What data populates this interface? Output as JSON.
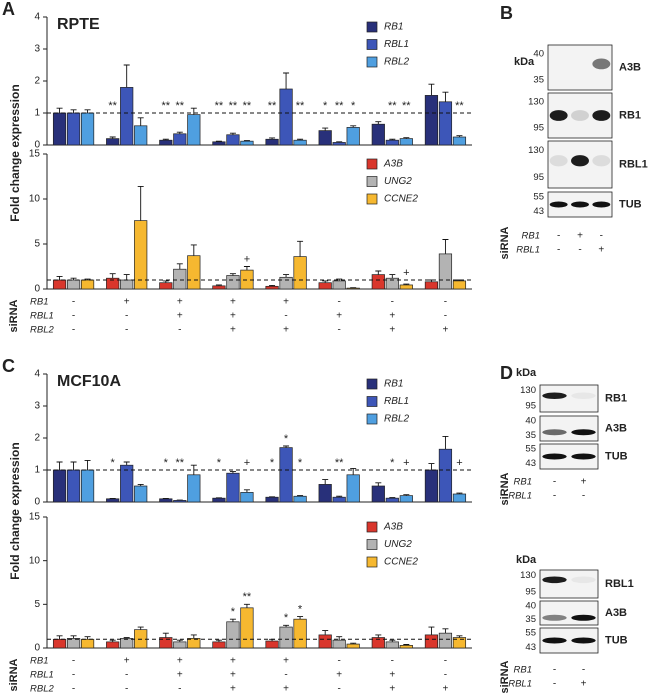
{
  "figure": {
    "panels": [
      {
        "letter": "A",
        "ylabel": "Fold change expression",
        "sirna": {
          "label": "siRNA",
          "rows": [
            {
              "name": "RB1",
              "signs": [
                "-",
                "+",
                "+",
                "+",
                "+",
                "-",
                "-",
                "-"
              ]
            },
            {
              "name": "RBL1",
              "signs": [
                "-",
                "-",
                "+",
                "+",
                "-",
                "+",
                "+",
                "-"
              ]
            },
            {
              "name": "RBL2",
              "signs": [
                "-",
                "-",
                "-",
                "+",
                "+",
                "-",
                "+",
                "+"
              ]
            }
          ]
        }
      },
      {
        "letter": "C",
        "ylabel": "Fold change expression",
        "sirna": {
          "label": "siRNA",
          "rows": [
            {
              "name": "RB1",
              "signs": [
                "-",
                "+",
                "+",
                "+",
                "+",
                "-",
                "-",
                "-"
              ]
            },
            {
              "name": "RBL1",
              "signs": [
                "-",
                "-",
                "+",
                "+",
                "-",
                "+",
                "+",
                "-"
              ]
            },
            {
              "name": "RBL2",
              "signs": [
                "-",
                "-",
                "-",
                "+",
                "+",
                "-",
                "+",
                "+"
              ]
            }
          ]
        }
      }
    ],
    "blots": [
      {
        "letter": "B",
        "groups": [
          {
            "unit": "kDa",
            "strips": [
              {
                "name": "A3B",
                "markers": [
                  40,
                  35
                ]
              },
              {
                "name": "RB1",
                "markers": [
                  130,
                  95
                ]
              },
              {
                "name": "RBL1",
                "markers": [
                  130,
                  95
                ]
              },
              {
                "name": "TUB",
                "markers": [
                  55,
                  43
                ]
              }
            ],
            "sirna": {
              "label": "siRNA",
              "rows": [
                {
                  "name": "RB1",
                  "signs": [
                    "-",
                    "+",
                    "-"
                  ]
                },
                {
                  "name": "RBL1",
                  "signs": [
                    "-",
                    "-",
                    "+"
                  ]
                }
              ]
            }
          }
        ]
      },
      {
        "letter": "D",
        "groups": [
          {
            "unit": "kDa",
            "strips": [
              {
                "name": "RB1",
                "markers": [
                  130,
                  95
                ]
              },
              {
                "name": "A3B",
                "markers": [
                  40,
                  35
                ]
              },
              {
                "name": "TUB",
                "markers": [
                  55,
                  43
                ]
              }
            ],
            "sirna": {
              "label": "siRNA",
              "rows": [
                {
                  "name": "RB1",
                  "signs": [
                    "-",
                    "+"
                  ]
                },
                {
                  "name": "RBL1",
                  "signs": [
                    "-",
                    "-"
                  ]
                }
              ]
            }
          },
          {
            "unit": "kDa",
            "strips": [
              {
                "name": "RBL1",
                "markers": [
                  130,
                  95
                ]
              },
              {
                "name": "A3B",
                "markers": [
                  40,
                  35
                ]
              },
              {
                "name": "TUB",
                "markers": [
                  55,
                  43
                ]
              }
            ],
            "sirna": {
              "label": "siRNA",
              "rows": [
                {
                  "name": "RB1",
                  "signs": [
                    "-",
                    "-"
                  ]
                },
                {
                  "name": "RBL1",
                  "signs": [
                    "-",
                    "+"
                  ]
                }
              ]
            }
          }
        ]
      }
    ]
  },
  "chart_data": [
    {
      "type": "bar",
      "title": "RPTE",
      "ylim": [
        0,
        4
      ],
      "yticks": [
        0,
        1,
        2,
        3,
        4
      ],
      "reference_line": 1,
      "legend": "upper right",
      "series": [
        {
          "name": "RB1",
          "color": "#28307a",
          "values": [
            1,
            0.2,
            0.15,
            0.1,
            0.18,
            0.45,
            0.65,
            1.55
          ],
          "errors": [
            0.15,
            0.05,
            0.03,
            0.02,
            0.04,
            0.08,
            0.08,
            0.35
          ],
          "marks": [
            null,
            "**",
            "**",
            "**",
            "**",
            "*",
            null,
            null
          ]
        },
        {
          "name": "RBL1",
          "color": "#3d56b8",
          "values": [
            1,
            1.8,
            0.35,
            0.32,
            1.75,
            0.08,
            0.15,
            1.35
          ],
          "errors": [
            0.1,
            0.7,
            0.05,
            0.05,
            0.5,
            0.02,
            0.03,
            0.3
          ],
          "marks": [
            null,
            null,
            "**",
            "**",
            null,
            "**",
            "**",
            null
          ]
        },
        {
          "name": "RBL2",
          "color": "#4f9fe0",
          "values": [
            1,
            0.6,
            0.95,
            0.12,
            0.15,
            0.55,
            0.2,
            0.25
          ],
          "errors": [
            0.1,
            0.25,
            0.2,
            0.02,
            0.03,
            0.05,
            0.03,
            0.04
          ],
          "marks": [
            null,
            null,
            null,
            "**",
            "**",
            "*",
            "**",
            "**"
          ]
        }
      ]
    },
    {
      "type": "bar",
      "ylim": [
        0,
        15
      ],
      "yticks": [
        0,
        5,
        10,
        15
      ],
      "reference_line": 1,
      "legend": "upper right",
      "series": [
        {
          "name": "A3B",
          "color": "#d9362c",
          "values": [
            1,
            1.2,
            0.7,
            0.35,
            0.3,
            0.7,
            1.6,
            0.8
          ],
          "errors": [
            0.4,
            0.5,
            0.2,
            0.1,
            0.1,
            0.2,
            0.4,
            0.2
          ]
        },
        {
          "name": "UNG2",
          "color": "#b3b3b3",
          "values": [
            1,
            1,
            2.2,
            1.5,
            1.3,
            0.9,
            1.2,
            3.9
          ],
          "errors": [
            0.2,
            0.6,
            0.6,
            0.2,
            0.3,
            0.2,
            0.4,
            1.6
          ]
        },
        {
          "name": "CCNE2",
          "color": "#f6b830",
          "values": [
            1,
            7.6,
            3.7,
            2.1,
            3.6,
            0.1,
            0.45,
            0.9
          ],
          "errors": [
            0.1,
            3.8,
            1.2,
            0.4,
            1.7,
            0.05,
            0.1,
            0.1
          ],
          "marks": [
            null,
            null,
            null,
            "+",
            null,
            null,
            "+",
            null
          ]
        }
      ]
    },
    {
      "type": "bar",
      "title": "MCF10A",
      "ylim": [
        0,
        4
      ],
      "yticks": [
        0,
        1,
        2,
        3,
        4
      ],
      "reference_line": 1,
      "legend": "upper right",
      "series": [
        {
          "name": "RB1",
          "color": "#28307a",
          "values": [
            1,
            0.1,
            0.1,
            0.12,
            0.15,
            0.55,
            0.5,
            1.0
          ],
          "errors": [
            0.25,
            0.01,
            0.01,
            0.01,
            0.01,
            0.15,
            0.1,
            0.2
          ],
          "marks": [
            null,
            "*",
            "*",
            "*",
            "*",
            null,
            null,
            null
          ]
        },
        {
          "name": "RBL1",
          "color": "#3d56b8",
          "values": [
            1,
            1.15,
            0.05,
            0.9,
            1.7,
            0.15,
            0.12,
            1.65
          ],
          "errors": [
            0.25,
            0.1,
            0.01,
            0.05,
            0.05,
            0.03,
            0.02,
            0.4
          ],
          "marks": [
            null,
            null,
            "**",
            null,
            "*",
            "**",
            "*",
            null
          ]
        },
        {
          "name": "RBL2",
          "color": "#4f9fe0",
          "values": [
            1,
            0.5,
            0.85,
            0.3,
            0.18,
            0.85,
            0.2,
            0.25
          ],
          "errors": [
            0.3,
            0.05,
            0.3,
            0.08,
            0.02,
            0.2,
            0.03,
            0.03
          ],
          "marks": [
            null,
            null,
            null,
            "+",
            "*",
            null,
            "+",
            "+"
          ]
        }
      ]
    },
    {
      "type": "bar",
      "ylim": [
        0,
        15
      ],
      "yticks": [
        0,
        5,
        10,
        15
      ],
      "reference_line": 1,
      "legend": "upper right",
      "series": [
        {
          "name": "A3B",
          "color": "#d9362c",
          "values": [
            1,
            0.7,
            1.2,
            0.7,
            0.8,
            1.5,
            1.2,
            1.5
          ],
          "errors": [
            0.4,
            0.2,
            0.5,
            0.2,
            0.2,
            0.5,
            0.3,
            0.9
          ]
        },
        {
          "name": "UNG2",
          "color": "#b3b3b3",
          "values": [
            1.1,
            1.1,
            0.7,
            3.0,
            2.4,
            0.9,
            0.7,
            1.7
          ],
          "errors": [
            0.3,
            0.1,
            0.2,
            0.3,
            0.2,
            0.4,
            0.2,
            0.5
          ],
          "marks": [
            null,
            null,
            null,
            "*",
            "*",
            null,
            null,
            null
          ]
        },
        {
          "name": "CCNE2",
          "color": "#f6b830",
          "values": [
            1,
            2.1,
            1.1,
            4.6,
            3.3,
            0.45,
            0.3,
            1.2
          ],
          "errors": [
            0.3,
            0.3,
            0.4,
            0.4,
            0.3,
            0.1,
            0.1,
            0.2
          ],
          "marks": [
            null,
            null,
            null,
            "**",
            "*",
            null,
            null,
            null
          ]
        }
      ]
    }
  ]
}
